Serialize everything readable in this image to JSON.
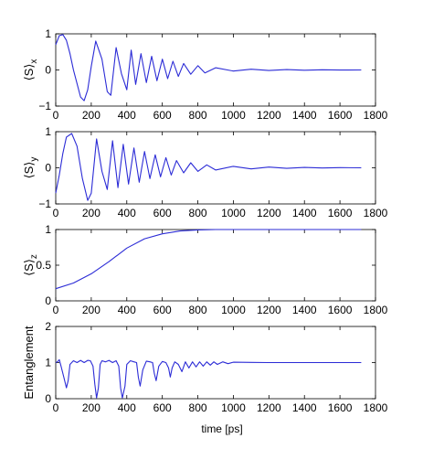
{
  "figure": {
    "xlabel": "time [ps]"
  },
  "colors": {
    "line": "#2b2bd6",
    "axes": "#000000",
    "background": "#ffffff"
  },
  "chart_data": [
    {
      "type": "line",
      "ylabel": "⟨S⟩x",
      "ylabel_main": "⟨S⟩",
      "ylabel_sub": "x",
      "xlim": [
        0,
        1800
      ],
      "ylim": [
        -1,
        1
      ],
      "xticks": [
        0,
        200,
        400,
        600,
        800,
        1000,
        1200,
        1400,
        1600,
        1800
      ],
      "xtick_labels": [
        "0",
        "200",
        "400",
        "600",
        "800",
        "1000",
        "1200",
        "1400",
        "1600",
        "1800"
      ],
      "yticks": [
        -1,
        0,
        1
      ],
      "ytick_labels": [
        "−1",
        "0",
        "1"
      ],
      "grid": false,
      "series": [
        {
          "values": {
            "x": [
              0,
              20,
              40,
              60,
              80,
              100,
              140,
              160,
              180,
              200,
              225,
              260,
              290,
              310,
              340,
              370,
              400,
              425,
              450,
              480,
              510,
              540,
              570,
              600,
              630,
              660,
              690,
              720,
              760,
              800,
              840,
              900,
              1000,
              1100,
              1200,
              1300,
              1400,
              1500,
              1600,
              1720
            ],
            "y": [
              0.7,
              0.95,
              0.98,
              0.82,
              0.45,
              0.0,
              -0.75,
              -0.85,
              -0.55,
              0.1,
              0.8,
              0.3,
              -0.6,
              -0.7,
              0.62,
              -0.1,
              -0.55,
              0.55,
              -0.4,
              0.45,
              -0.35,
              0.38,
              -0.3,
              0.3,
              -0.24,
              0.24,
              -0.18,
              0.18,
              -0.12,
              0.12,
              -0.08,
              0.06,
              -0.03,
              0.02,
              -0.015,
              0.01,
              -0.008,
              0.005,
              -0.003,
              0.0
            ]
          }
        }
      ]
    },
    {
      "type": "line",
      "ylabel": "⟨S⟩y",
      "ylabel_main": "⟨S⟩",
      "ylabel_sub": "y",
      "xlim": [
        0,
        1800
      ],
      "ylim": [
        -1,
        1
      ],
      "xticks": [
        0,
        200,
        400,
        600,
        800,
        1000,
        1200,
        1400,
        1600,
        1800
      ],
      "xtick_labels": [
        "0",
        "200",
        "400",
        "600",
        "800",
        "1000",
        "1200",
        "1400",
        "1600",
        "1800"
      ],
      "yticks": [
        -1,
        0,
        1
      ],
      "ytick_labels": [
        "−1",
        "0",
        "1"
      ],
      "grid": false,
      "series": [
        {
          "values": {
            "x": [
              0,
              20,
              40,
              60,
              90,
              120,
              150,
              180,
              200,
              230,
              260,
              290,
              320,
              350,
              380,
              410,
              440,
              470,
              500,
              530,
              560,
              590,
              620,
              650,
              680,
              720,
              760,
              800,
              850,
              900,
              1000,
              1100,
              1200,
              1300,
              1400,
              1500,
              1600,
              1720
            ],
            "y": [
              -0.7,
              -0.2,
              0.4,
              0.85,
              0.95,
              0.6,
              -0.3,
              -0.9,
              -0.7,
              0.8,
              -0.1,
              -0.6,
              0.75,
              -0.55,
              0.65,
              -0.45,
              0.55,
              -0.4,
              0.45,
              -0.3,
              0.36,
              -0.25,
              0.28,
              -0.2,
              0.2,
              -0.14,
              0.14,
              -0.1,
              0.08,
              -0.06,
              0.04,
              -0.03,
              0.02,
              -0.015,
              0.01,
              -0.006,
              0.004,
              0.0
            ]
          }
        }
      ]
    },
    {
      "type": "line",
      "ylabel": "⟨S⟩z",
      "ylabel_main": "⟨S⟩",
      "ylabel_sub": "z",
      "xlim": [
        0,
        1800
      ],
      "ylim": [
        0,
        1
      ],
      "xticks": [
        0,
        200,
        400,
        600,
        800,
        1000,
        1200,
        1400,
        1600,
        1800
      ],
      "xtick_labels": [
        "0",
        "200",
        "400",
        "600",
        "800",
        "1000",
        "1200",
        "1400",
        "1600",
        "1800"
      ],
      "yticks": [
        0,
        0.5,
        1
      ],
      "ytick_labels": [
        "0",
        "0.5",
        "1"
      ],
      "grid": false,
      "series": [
        {
          "values": {
            "x": [
              0,
              100,
              200,
              300,
              400,
              500,
              600,
              700,
              800,
              900,
              1000,
              1100,
              1200,
              1400,
              1600,
              1720
            ],
            "y": [
              0.17,
              0.25,
              0.38,
              0.55,
              0.74,
              0.87,
              0.94,
              0.98,
              0.995,
              1.0,
              1.0,
              1.0,
              1.0,
              1.0,
              1.0,
              1.0
            ]
          }
        }
      ]
    },
    {
      "type": "line",
      "ylabel": "Entanglement",
      "xlabel": "time [ps]",
      "xlim": [
        0,
        1800
      ],
      "ylim": [
        0,
        2
      ],
      "xticks": [
        0,
        200,
        400,
        600,
        800,
        1000,
        1200,
        1400,
        1600,
        1800
      ],
      "xtick_labels": [
        "0",
        "200",
        "400",
        "600",
        "800",
        "1000",
        "1200",
        "1400",
        "1600",
        "1800"
      ],
      "yticks": [
        0,
        1,
        2
      ],
      "ytick_labels": [
        "0",
        "1",
        "2"
      ],
      "grid": false,
      "series": [
        {
          "values": {
            "x": [
              0,
              10,
              20,
              30,
              45,
              60,
              70,
              80,
              100,
              120,
              140,
              160,
              180,
              195,
              210,
              220,
              230,
              240,
              250,
              260,
              280,
              300,
              320,
              340,
              355,
              365,
              375,
              390,
              400,
              420,
              440,
              455,
              465,
              475,
              490,
              510,
              530,
              545,
              555,
              565,
              580,
              600,
              620,
              635,
              645,
              655,
              670,
              690,
              710,
              730,
              750,
              770,
              790,
              810,
              830,
              850,
              870,
              890,
              910,
              940,
              970,
              1000,
              1100,
              1200,
              1300,
              1400,
              1500,
              1600,
              1720
            ],
            "y": [
              1.0,
              1.02,
              1.08,
              0.9,
              0.6,
              0.3,
              0.5,
              0.95,
              1.05,
              1.0,
              1.06,
              1.0,
              1.06,
              1.05,
              0.9,
              0.4,
              0.02,
              0.3,
              0.95,
              1.05,
              1.02,
              1.06,
              1.0,
              1.05,
              0.9,
              0.3,
              0.02,
              0.35,
              0.95,
              1.05,
              1.02,
              1.0,
              0.6,
              0.35,
              0.8,
              1.04,
              1.02,
              1.0,
              0.7,
              0.5,
              0.9,
              1.03,
              1.0,
              0.85,
              0.6,
              0.85,
              1.02,
              0.95,
              0.75,
              1.02,
              0.85,
              1.02,
              0.88,
              1.02,
              0.9,
              1.02,
              0.93,
              1.02,
              0.95,
              1.02,
              0.97,
              1.01,
              1.005,
              1.0,
              1.0,
              1.0,
              1.0,
              1.0,
              1.0
            ]
          }
        }
      ]
    }
  ]
}
